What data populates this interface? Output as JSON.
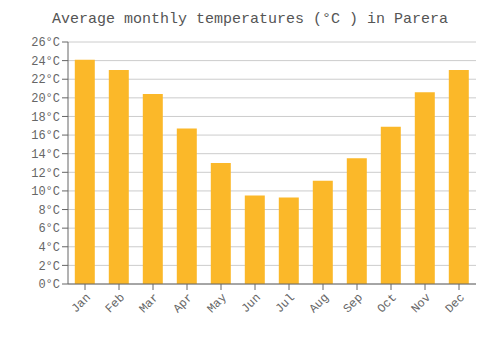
{
  "chart_data": {
    "type": "bar",
    "title": "Average monthly temperatures (°C ) in Parera",
    "categories": [
      "Jan",
      "Feb",
      "Mar",
      "Apr",
      "May",
      "Jun",
      "Jul",
      "Aug",
      "Sep",
      "Oct",
      "Nov",
      "Dec"
    ],
    "values": [
      24.1,
      23.0,
      20.4,
      16.7,
      13.0,
      9.5,
      9.3,
      11.1,
      13.5,
      16.9,
      20.6,
      23.0
    ],
    "color": "#FBB829",
    "ylim": [
      0,
      26
    ],
    "yticks": [
      {
        "value": 0,
        "label": "0°C"
      },
      {
        "value": 2,
        "label": "2°C"
      },
      {
        "value": 4,
        "label": "4°C"
      },
      {
        "value": 6,
        "label": "6°C"
      },
      {
        "value": 8,
        "label": "8°C"
      },
      {
        "value": 10,
        "label": "10°C"
      },
      {
        "value": 12,
        "label": "12°C"
      },
      {
        "value": 14,
        "label": "14°C"
      },
      {
        "value": 16,
        "label": "16°C"
      },
      {
        "value": 18,
        "label": "18°C"
      },
      {
        "value": 20,
        "label": "20°C"
      },
      {
        "value": 22,
        "label": "22°C"
      },
      {
        "value": 24,
        "label": "24°C"
      },
      {
        "value": 26,
        "label": "26°C"
      }
    ],
    "grid": true
  }
}
